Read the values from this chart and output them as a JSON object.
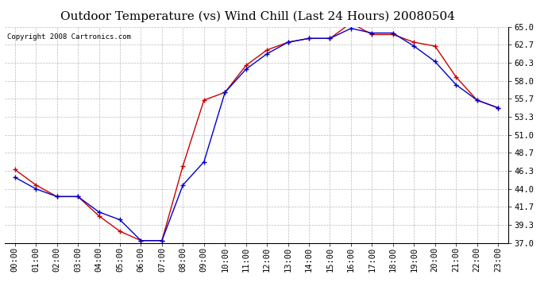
{
  "title": "Outdoor Temperature (vs) Wind Chill (Last 24 Hours) 20080504",
  "copyright": "Copyright 2008 Cartronics.com",
  "hours": [
    "00:00",
    "01:00",
    "02:00",
    "03:00",
    "04:00",
    "05:00",
    "06:00",
    "07:00",
    "08:00",
    "09:00",
    "10:00",
    "11:00",
    "12:00",
    "13:00",
    "14:00",
    "15:00",
    "16:00",
    "17:00",
    "18:00",
    "19:00",
    "20:00",
    "21:00",
    "22:00",
    "23:00"
  ],
  "temp": [
    45.5,
    44.0,
    43.0,
    43.0,
    41.0,
    40.0,
    37.3,
    37.3,
    44.5,
    47.5,
    56.5,
    59.5,
    61.5,
    63.0,
    63.5,
    63.5,
    64.8,
    64.2,
    64.2,
    62.5,
    60.5,
    57.5,
    55.5,
    54.5
  ],
  "wind_chill": [
    46.5,
    44.5,
    43.0,
    43.0,
    40.5,
    38.5,
    37.3,
    37.3,
    47.0,
    55.5,
    56.5,
    60.0,
    62.0,
    63.0,
    63.5,
    63.5,
    65.5,
    64.0,
    64.0,
    63.0,
    62.5,
    58.5,
    55.5,
    54.5
  ],
  "temp_color": "#0000cc",
  "wind_chill_color": "#cc0000",
  "background_color": "#ffffff",
  "plot_bg_color": "#ffffff",
  "grid_color": "#bbbbbb",
  "ylim": [
    37.0,
    65.0
  ],
  "yticks": [
    37.0,
    39.3,
    41.7,
    44.0,
    46.3,
    48.7,
    51.0,
    53.3,
    55.7,
    58.0,
    60.3,
    62.7,
    65.0
  ],
  "title_fontsize": 11,
  "copyright_fontsize": 6.5,
  "tick_fontsize": 7.5
}
